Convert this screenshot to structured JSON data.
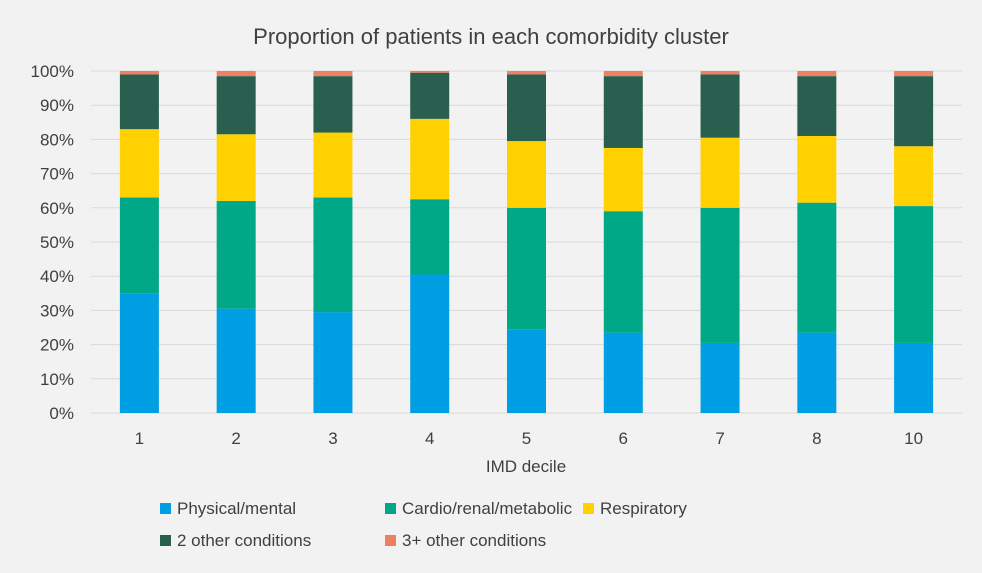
{
  "chart_data": {
    "type": "bar",
    "stacked": true,
    "title": "Proportion of patients in each comorbidity cluster",
    "xlabel": "IMD decile",
    "ylabel": "",
    "ylim": [
      0,
      100
    ],
    "y_ticks": [
      "0%",
      "10%",
      "20%",
      "30%",
      "40%",
      "50%",
      "60%",
      "70%",
      "80%",
      "90%",
      "100%"
    ],
    "categories": [
      "1",
      "2",
      "3",
      "4",
      "5",
      "6",
      "7",
      "8",
      "10"
    ],
    "grid": true,
    "legend_position": "bottom",
    "series": [
      {
        "name": "Physical/mental",
        "color": "#009fe3",
        "values": [
          35,
          30.5,
          29.5,
          40.5,
          24.5,
          23.5,
          20.5,
          23.5,
          20.5
        ]
      },
      {
        "name": "Cardio/renal/metabolic",
        "color": "#00a887",
        "values": [
          28,
          31.5,
          33.5,
          22,
          35.5,
          35.5,
          39.5,
          38,
          40
        ]
      },
      {
        "name": "Respiratory",
        "color": "#ffd100",
        "values": [
          20,
          19.5,
          19,
          23.5,
          19.5,
          18.5,
          20.5,
          19.5,
          17.5
        ]
      },
      {
        "name": "2 other conditions",
        "color": "#285f4f",
        "values": [
          16,
          17,
          16.5,
          13.5,
          19.5,
          21,
          18.5,
          17.5,
          20.5
        ]
      },
      {
        "name": "3+ other conditions",
        "color": "#f08062",
        "values": [
          1,
          1.5,
          1.5,
          0.5,
          1,
          1.5,
          1,
          1.5,
          1.5
        ]
      }
    ]
  }
}
